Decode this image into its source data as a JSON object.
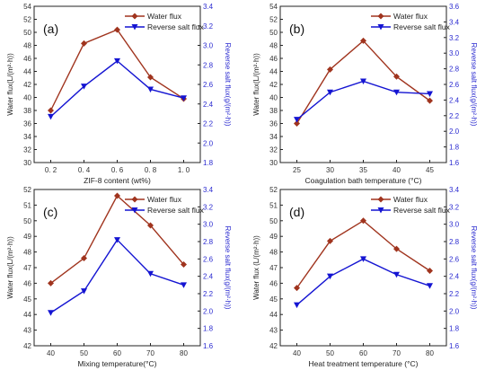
{
  "colors": {
    "water": "#A0341E",
    "salt": "#1414D2",
    "axis": "#222222",
    "right_axis": "#2B2BD0"
  },
  "chart_data": [
    {
      "type": "line",
      "panel_label": "(a)",
      "xlabel": "ZIF-8 content (wt%)",
      "ylabel_left": "Water flux(L/(m²·h))",
      "ylabel_right": "Reverse salt flux(g/(m²·h))",
      "x": [
        0.2,
        0.4,
        0.6,
        0.8,
        1.0
      ],
      "x_ticks": [
        "0. 2",
        "0. 4",
        "0. 6",
        "0. 8",
        "1. 0"
      ],
      "ylim_left": [
        30,
        54
      ],
      "ylim_right": [
        1.8,
        3.4
      ],
      "yticks_left": [
        "30",
        "32",
        "34",
        "36",
        "38",
        "40",
        "42",
        "44",
        "46",
        "48",
        "50",
        "52",
        "54"
      ],
      "yticks_right": [
        "1.8",
        "2.0",
        "2.2",
        "2.4",
        "2.6",
        "2.8",
        "3.0",
        "3.2",
        "3.4"
      ],
      "legend": "top-right",
      "series": [
        {
          "name": "Water flux",
          "axis": "left",
          "marker": "diamond",
          "values": [
            38.0,
            48.3,
            50.4,
            43.1,
            39.8
          ]
        },
        {
          "name": "Reverse salt flux",
          "axis": "right",
          "marker": "triangle-down",
          "values": [
            2.27,
            2.58,
            2.84,
            2.55,
            2.46
          ]
        }
      ]
    },
    {
      "type": "line",
      "panel_label": "(b)",
      "xlabel": "Coagulation bath temperature (°C)",
      "ylabel_left": "Water flux(L/(m²·h))",
      "ylabel_right": "Reverse salt flux(g/(m²·h))",
      "x": [
        25,
        30,
        35,
        40,
        45
      ],
      "x_ticks": [
        "25",
        "30",
        "35",
        "40",
        "45"
      ],
      "ylim_left": [
        30,
        54
      ],
      "ylim_right": [
        1.6,
        3.6
      ],
      "yticks_left": [
        "30",
        "32",
        "34",
        "36",
        "38",
        "40",
        "42",
        "44",
        "46",
        "48",
        "50",
        "52",
        "54"
      ],
      "yticks_right": [
        "1.6",
        "1.8",
        "2.0",
        "2.2",
        "2.4",
        "2.6",
        "2.8",
        "3.0",
        "3.2",
        "3.4",
        "3.6"
      ],
      "legend": "top-right",
      "series": [
        {
          "name": "Water flux",
          "axis": "left",
          "marker": "diamond",
          "values": [
            36.0,
            44.3,
            48.7,
            43.2,
            39.5
          ]
        },
        {
          "name": "Reverse salt flux",
          "axis": "right",
          "marker": "triangle-down",
          "values": [
            2.15,
            2.5,
            2.64,
            2.5,
            2.48
          ]
        }
      ]
    },
    {
      "type": "line",
      "panel_label": "(c)",
      "xlabel": "Mixing temperature(°C)",
      "ylabel_left": "Water flux(L/(m²·h))",
      "ylabel_right": "Reverse salt flux(g/(m²·h))",
      "x": [
        40,
        50,
        60,
        70,
        80
      ],
      "x_ticks": [
        "40",
        "50",
        "60",
        "70",
        "80"
      ],
      "ylim_left": [
        42,
        52
      ],
      "ylim_right": [
        1.6,
        3.4
      ],
      "yticks_left": [
        "42",
        "43",
        "44",
        "45",
        "46",
        "47",
        "48",
        "49",
        "50",
        "51",
        "52"
      ],
      "yticks_right": [
        "1.6",
        "1.8",
        "2.0",
        "2.2",
        "2.4",
        "2.6",
        "2.8",
        "3.0",
        "3.2",
        "3.4"
      ],
      "legend": "top-right",
      "series": [
        {
          "name": "Water flux",
          "axis": "left",
          "marker": "diamond",
          "values": [
            46.0,
            47.6,
            51.6,
            49.7,
            47.2
          ]
        },
        {
          "name": "Reverse salt flux",
          "axis": "right",
          "marker": "triangle-down",
          "values": [
            1.98,
            2.23,
            2.82,
            2.43,
            2.3
          ]
        }
      ]
    },
    {
      "type": "line",
      "panel_label": "(d)",
      "xlabel": "Heat treatment temperature (°C)",
      "ylabel_left": "Water flux (L/(m²·h))",
      "ylabel_right": "Reverse salt flux(g/(m²·h))",
      "x": [
        40,
        50,
        60,
        70,
        80
      ],
      "x_ticks": [
        "40",
        "50",
        "60",
        "70",
        "80"
      ],
      "ylim_left": [
        42,
        52
      ],
      "ylim_right": [
        1.6,
        3.4
      ],
      "yticks_left": [
        "42",
        "43",
        "44",
        "45",
        "46",
        "47",
        "48",
        "49",
        "50",
        "51",
        "52"
      ],
      "yticks_right": [
        "1.6",
        "1.8",
        "2.0",
        "2.2",
        "2.4",
        "2.6",
        "2.8",
        "3.0",
        "3.2",
        "3.4"
      ],
      "legend": "top-right",
      "series": [
        {
          "name": "Water flux",
          "axis": "left",
          "marker": "diamond",
          "values": [
            45.7,
            48.7,
            50.0,
            48.2,
            46.8
          ]
        },
        {
          "name": "Reverse salt flux",
          "axis": "right",
          "marker": "triangle-down",
          "values": [
            2.07,
            2.4,
            2.6,
            2.42,
            2.29
          ]
        }
      ]
    }
  ]
}
